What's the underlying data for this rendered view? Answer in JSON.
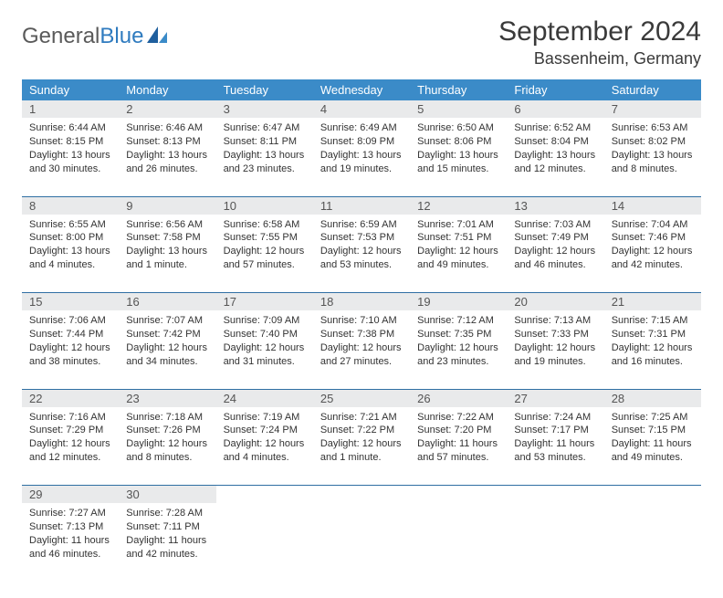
{
  "brand": {
    "part1": "General",
    "part2": "Blue"
  },
  "title": "September 2024",
  "location": "Bassenheim, Germany",
  "colors": {
    "header_bg": "#3b8bc8",
    "header_text": "#ffffff",
    "daynum_bg": "#e9eaeb",
    "rule": "#2f6fa3",
    "body_text": "#333333",
    "brand_gray": "#5a5a5a",
    "brand_blue": "#2f7bbf"
  },
  "weekdays": [
    "Sunday",
    "Monday",
    "Tuesday",
    "Wednesday",
    "Thursday",
    "Friday",
    "Saturday"
  ],
  "weeks": [
    [
      {
        "day": "1",
        "sunrise": "Sunrise: 6:44 AM",
        "sunset": "Sunset: 8:15 PM",
        "daylight": "Daylight: 13 hours and 30 minutes."
      },
      {
        "day": "2",
        "sunrise": "Sunrise: 6:46 AM",
        "sunset": "Sunset: 8:13 PM",
        "daylight": "Daylight: 13 hours and 26 minutes."
      },
      {
        "day": "3",
        "sunrise": "Sunrise: 6:47 AM",
        "sunset": "Sunset: 8:11 PM",
        "daylight": "Daylight: 13 hours and 23 minutes."
      },
      {
        "day": "4",
        "sunrise": "Sunrise: 6:49 AM",
        "sunset": "Sunset: 8:09 PM",
        "daylight": "Daylight: 13 hours and 19 minutes."
      },
      {
        "day": "5",
        "sunrise": "Sunrise: 6:50 AM",
        "sunset": "Sunset: 8:06 PM",
        "daylight": "Daylight: 13 hours and 15 minutes."
      },
      {
        "day": "6",
        "sunrise": "Sunrise: 6:52 AM",
        "sunset": "Sunset: 8:04 PM",
        "daylight": "Daylight: 13 hours and 12 minutes."
      },
      {
        "day": "7",
        "sunrise": "Sunrise: 6:53 AM",
        "sunset": "Sunset: 8:02 PM",
        "daylight": "Daylight: 13 hours and 8 minutes."
      }
    ],
    [
      {
        "day": "8",
        "sunrise": "Sunrise: 6:55 AM",
        "sunset": "Sunset: 8:00 PM",
        "daylight": "Daylight: 13 hours and 4 minutes."
      },
      {
        "day": "9",
        "sunrise": "Sunrise: 6:56 AM",
        "sunset": "Sunset: 7:58 PM",
        "daylight": "Daylight: 13 hours and 1 minute."
      },
      {
        "day": "10",
        "sunrise": "Sunrise: 6:58 AM",
        "sunset": "Sunset: 7:55 PM",
        "daylight": "Daylight: 12 hours and 57 minutes."
      },
      {
        "day": "11",
        "sunrise": "Sunrise: 6:59 AM",
        "sunset": "Sunset: 7:53 PM",
        "daylight": "Daylight: 12 hours and 53 minutes."
      },
      {
        "day": "12",
        "sunrise": "Sunrise: 7:01 AM",
        "sunset": "Sunset: 7:51 PM",
        "daylight": "Daylight: 12 hours and 49 minutes."
      },
      {
        "day": "13",
        "sunrise": "Sunrise: 7:03 AM",
        "sunset": "Sunset: 7:49 PM",
        "daylight": "Daylight: 12 hours and 46 minutes."
      },
      {
        "day": "14",
        "sunrise": "Sunrise: 7:04 AM",
        "sunset": "Sunset: 7:46 PM",
        "daylight": "Daylight: 12 hours and 42 minutes."
      }
    ],
    [
      {
        "day": "15",
        "sunrise": "Sunrise: 7:06 AM",
        "sunset": "Sunset: 7:44 PM",
        "daylight": "Daylight: 12 hours and 38 minutes."
      },
      {
        "day": "16",
        "sunrise": "Sunrise: 7:07 AM",
        "sunset": "Sunset: 7:42 PM",
        "daylight": "Daylight: 12 hours and 34 minutes."
      },
      {
        "day": "17",
        "sunrise": "Sunrise: 7:09 AM",
        "sunset": "Sunset: 7:40 PM",
        "daylight": "Daylight: 12 hours and 31 minutes."
      },
      {
        "day": "18",
        "sunrise": "Sunrise: 7:10 AM",
        "sunset": "Sunset: 7:38 PM",
        "daylight": "Daylight: 12 hours and 27 minutes."
      },
      {
        "day": "19",
        "sunrise": "Sunrise: 7:12 AM",
        "sunset": "Sunset: 7:35 PM",
        "daylight": "Daylight: 12 hours and 23 minutes."
      },
      {
        "day": "20",
        "sunrise": "Sunrise: 7:13 AM",
        "sunset": "Sunset: 7:33 PM",
        "daylight": "Daylight: 12 hours and 19 minutes."
      },
      {
        "day": "21",
        "sunrise": "Sunrise: 7:15 AM",
        "sunset": "Sunset: 7:31 PM",
        "daylight": "Daylight: 12 hours and 16 minutes."
      }
    ],
    [
      {
        "day": "22",
        "sunrise": "Sunrise: 7:16 AM",
        "sunset": "Sunset: 7:29 PM",
        "daylight": "Daylight: 12 hours and 12 minutes."
      },
      {
        "day": "23",
        "sunrise": "Sunrise: 7:18 AM",
        "sunset": "Sunset: 7:26 PM",
        "daylight": "Daylight: 12 hours and 8 minutes."
      },
      {
        "day": "24",
        "sunrise": "Sunrise: 7:19 AM",
        "sunset": "Sunset: 7:24 PM",
        "daylight": "Daylight: 12 hours and 4 minutes."
      },
      {
        "day": "25",
        "sunrise": "Sunrise: 7:21 AM",
        "sunset": "Sunset: 7:22 PM",
        "daylight": "Daylight: 12 hours and 1 minute."
      },
      {
        "day": "26",
        "sunrise": "Sunrise: 7:22 AM",
        "sunset": "Sunset: 7:20 PM",
        "daylight": "Daylight: 11 hours and 57 minutes."
      },
      {
        "day": "27",
        "sunrise": "Sunrise: 7:24 AM",
        "sunset": "Sunset: 7:17 PM",
        "daylight": "Daylight: 11 hours and 53 minutes."
      },
      {
        "day": "28",
        "sunrise": "Sunrise: 7:25 AM",
        "sunset": "Sunset: 7:15 PM",
        "daylight": "Daylight: 11 hours and 49 minutes."
      }
    ],
    [
      {
        "day": "29",
        "sunrise": "Sunrise: 7:27 AM",
        "sunset": "Sunset: 7:13 PM",
        "daylight": "Daylight: 11 hours and 46 minutes."
      },
      {
        "day": "30",
        "sunrise": "Sunrise: 7:28 AM",
        "sunset": "Sunset: 7:11 PM",
        "daylight": "Daylight: 11 hours and 42 minutes."
      },
      null,
      null,
      null,
      null,
      null
    ]
  ]
}
